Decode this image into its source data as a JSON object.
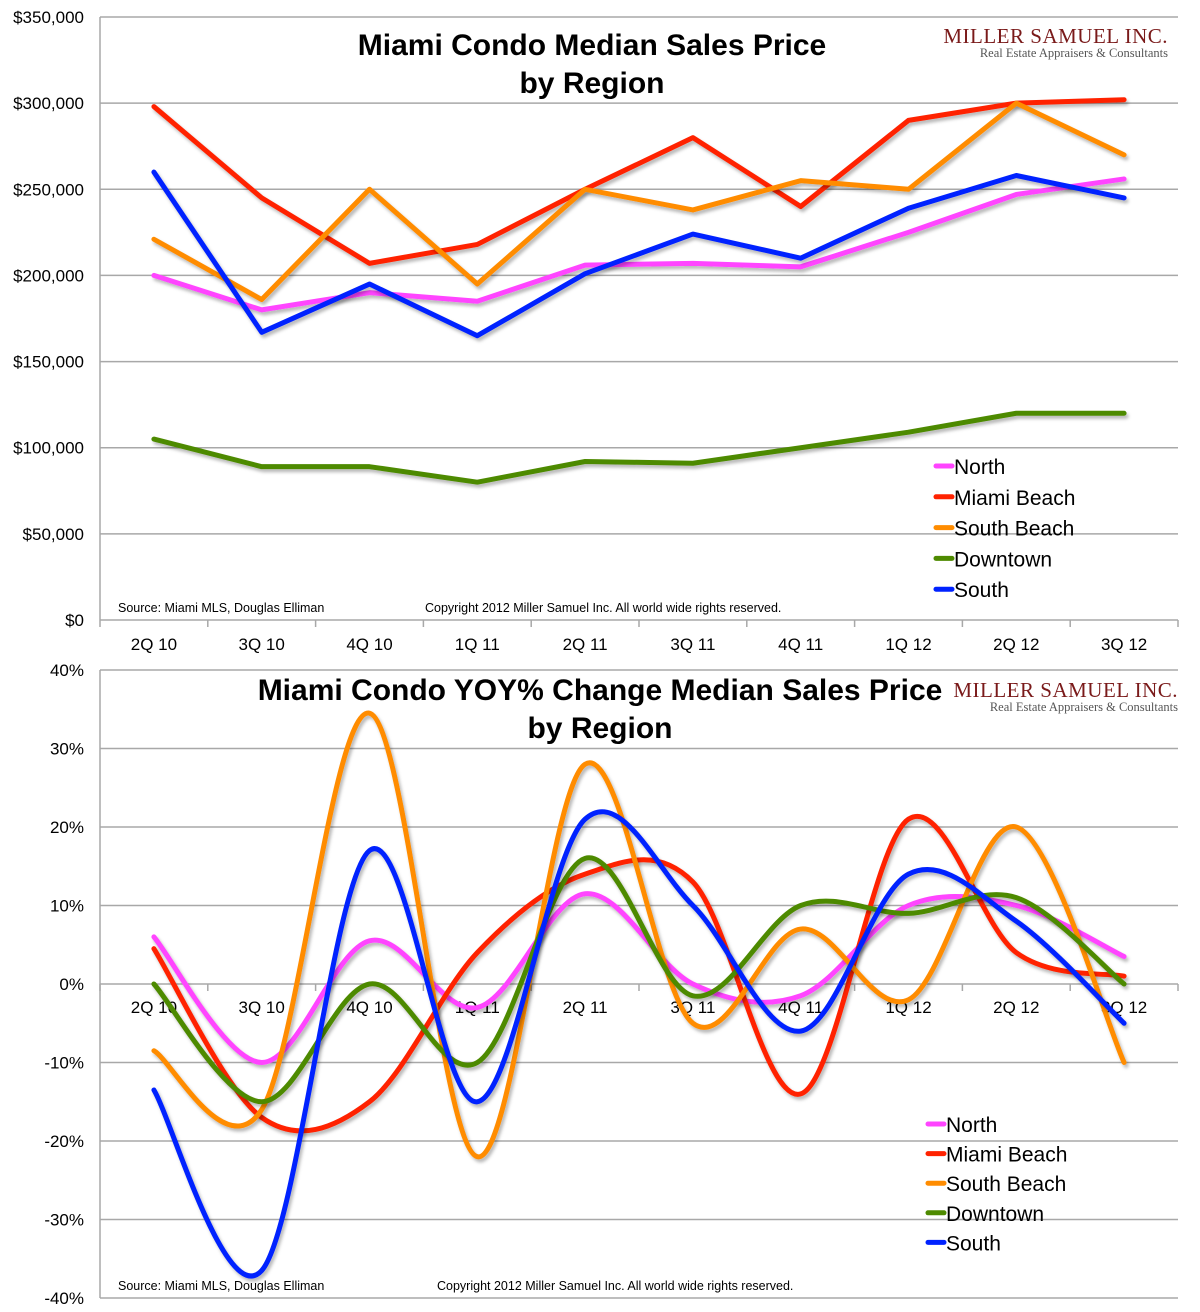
{
  "chart_data": [
    {
      "type": "line",
      "title": "Miami Condo Median Sales Price by Region",
      "title_lines": [
        "Miami Condo Median Sales Price",
        "by Region"
      ],
      "xlabel": "",
      "ylabel": "",
      "categories": [
        "2Q 10",
        "3Q 10",
        "4Q 10",
        "1Q 11",
        "2Q 11",
        "3Q 11",
        "4Q 11",
        "1Q 12",
        "2Q 12",
        "3Q 12"
      ],
      "ylim": [
        0,
        350000
      ],
      "yticks": [
        0,
        50000,
        100000,
        150000,
        200000,
        250000,
        300000,
        350000
      ],
      "ytick_labels": [
        "$0",
        "$50,000",
        "$100,000",
        "$150,000",
        "$200,000",
        "$250,000",
        "$300,000",
        "$350,000"
      ],
      "grid": true,
      "smooth": false,
      "legend_position": "bottom-right",
      "series": [
        {
          "name": "North",
          "color": "#ff44ff",
          "values": [
            200000,
            180000,
            190000,
            185000,
            206000,
            207000,
            205000,
            225000,
            247000,
            256000
          ]
        },
        {
          "name": "Miami Beach",
          "color": "#ff2200",
          "values": [
            298000,
            245000,
            207000,
            218000,
            250000,
            280000,
            240000,
            290000,
            300000,
            302000
          ]
        },
        {
          "name": "South Beach",
          "color": "#ff8c00",
          "values": [
            221000,
            186000,
            250000,
            195000,
            250000,
            238000,
            255000,
            250000,
            300000,
            270000
          ]
        },
        {
          "name": "Downtown",
          "color": "#4e8a00",
          "values": [
            105000,
            89000,
            89000,
            80000,
            92000,
            91000,
            100000,
            109000,
            120000,
            120000
          ]
        },
        {
          "name": "South",
          "color": "#0022ff",
          "values": [
            260000,
            167000,
            195000,
            165000,
            201000,
            224000,
            210000,
            239000,
            258000,
            245000
          ]
        }
      ],
      "source_note": "Source: Miami MLS, Douglas Elliman",
      "copyright_note": "Copyright 2012 Miller Samuel Inc. All world wide rights reserved."
    },
    {
      "type": "line",
      "title": "Miami Condo YOY% Change Median Sales Price by Region",
      "title_lines": [
        "Miami Condo YOY% Change Median Sales Price",
        "by Region"
      ],
      "xlabel": "",
      "ylabel": "",
      "categories": [
        "2Q 10",
        "3Q 10",
        "4Q 10",
        "1Q 11",
        "2Q 11",
        "3Q 11",
        "4Q 11",
        "1Q 12",
        "2Q 12",
        "3Q 12"
      ],
      "ylim": [
        -40,
        40
      ],
      "yticks": [
        -40,
        -30,
        -20,
        -10,
        0,
        10,
        20,
        30,
        40
      ],
      "ytick_labels": [
        "-40%",
        "-30%",
        "-20%",
        "-10%",
        "0%",
        "10%",
        "20%",
        "30%",
        "40%"
      ],
      "grid": true,
      "smooth": true,
      "legend_position": "bottom-right",
      "series": [
        {
          "name": "North",
          "color": "#ff44ff",
          "values": [
            6,
            -10,
            5.5,
            -3,
            11.5,
            0,
            -1.5,
            10,
            10,
            3.5
          ]
        },
        {
          "name": "Miami Beach",
          "color": "#ff2200",
          "values": [
            4.5,
            -17,
            -15,
            4,
            14,
            13,
            -14,
            21,
            4,
            1
          ]
        },
        {
          "name": "South Beach",
          "color": "#ff8c00",
          "values": [
            -8.5,
            -16,
            34.5,
            -22,
            28,
            -5,
            7,
            -2,
            20,
            -10
          ]
        },
        {
          "name": "Downtown",
          "color": "#4e8a00",
          "values": [
            0,
            -15,
            0,
            -10,
            16,
            -1.5,
            10,
            9,
            11,
            0
          ]
        },
        {
          "name": "South",
          "color": "#0022ff",
          "values": [
            -13.5,
            -36.5,
            17,
            -15,
            21,
            10,
            -6,
            14,
            8,
            -5
          ]
        }
      ],
      "source_note": "Source: Miami MLS, Douglas Elliman",
      "copyright_note": "Copyright 2012 Miller Samuel Inc. All world wide rights reserved."
    }
  ],
  "branding": {
    "company_name": "Miller Samuel Inc.",
    "company_name_display": "MILLER SAMUEL INC.",
    "tagline": "Real Estate Appraisers & Consultants",
    "color": "#7a1a1a"
  }
}
